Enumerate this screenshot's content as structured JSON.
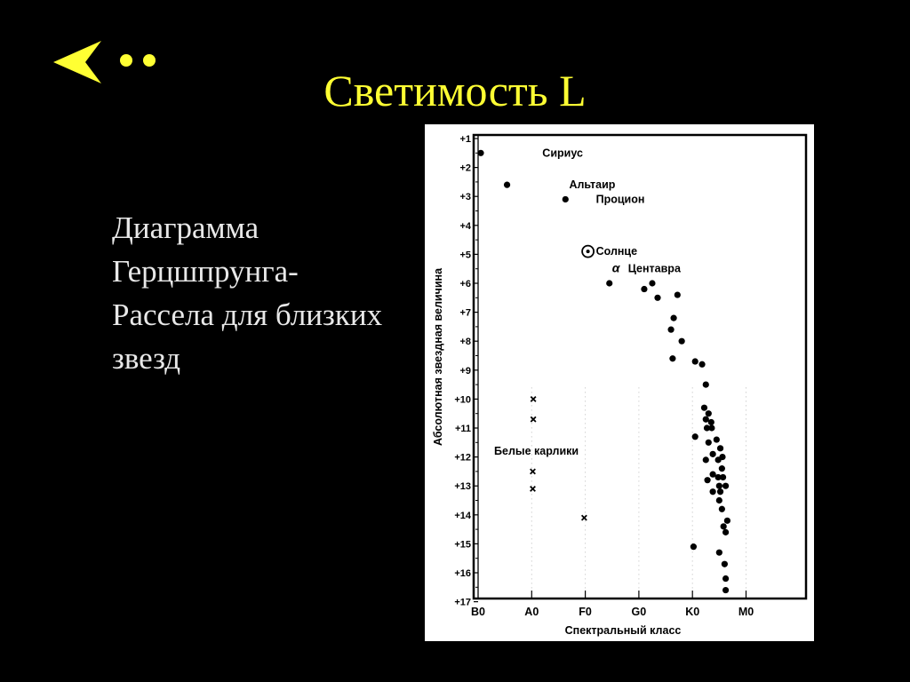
{
  "nav": {
    "back_icon": "back-arrow-dots-icon",
    "accent_color": "#ffff33"
  },
  "slide": {
    "title": "Светимость L",
    "caption_lines": [
      "Диаграмма",
      "Герцшпрунга-",
      "Рассела для близких",
      "звезд"
    ]
  },
  "chart_data": {
    "type": "scatter",
    "xlabel": "Спектральный класс",
    "ylabel": "Абсолютная звездная величина",
    "x_ticks": [
      "B0",
      "A0",
      "F0",
      "G0",
      "K0",
      "M0"
    ],
    "y_ticks": [
      "+1",
      "+2",
      "+3",
      "+4",
      "+5",
      "+6",
      "+7",
      "+8",
      "+9",
      "+10",
      "+11",
      "+12",
      "+13",
      "+14",
      "+15",
      "+16",
      "+17"
    ],
    "xlim": [
      0,
      5.6
    ],
    "ylim": [
      1,
      17
    ],
    "y_inverted": true,
    "annotations": [
      {
        "text": "Сириус",
        "x": 1.0,
        "y": 1.5
      },
      {
        "text": "Альтаир",
        "x": 1.5,
        "y": 2.6
      },
      {
        "text": "Процион",
        "x": 2.0,
        "y": 3.1
      },
      {
        "text": "Солнце",
        "x": 2.0,
        "y": 4.9
      },
      {
        "text": "α",
        "x": 2.3,
        "y": 5.5
      },
      {
        "text": "Центавра",
        "x": 2.6,
        "y": 5.5
      },
      {
        "text": "Белые карлики",
        "x": 0.1,
        "y": 11.8
      }
    ],
    "series": [
      {
        "name": "dot",
        "marker": "dot",
        "points": [
          [
            0.05,
            1.5
          ],
          [
            0.54,
            2.6
          ],
          [
            1.63,
            3.1
          ],
          [
            2.45,
            6.0
          ],
          [
            3.1,
            6.2
          ],
          [
            3.25,
            6.0
          ],
          [
            3.35,
            6.5
          ],
          [
            3.72,
            6.4
          ],
          [
            3.65,
            7.2
          ],
          [
            3.6,
            7.6
          ],
          [
            3.8,
            8.0
          ],
          [
            3.63,
            8.6
          ],
          [
            4.05,
            8.7
          ],
          [
            4.18,
            8.8
          ],
          [
            4.25,
            9.5
          ],
          [
            4.22,
            10.3
          ],
          [
            4.3,
            10.5
          ],
          [
            4.25,
            10.7
          ],
          [
            4.35,
            10.8
          ],
          [
            4.27,
            11.0
          ],
          [
            4.36,
            11.0
          ],
          [
            4.05,
            11.3
          ],
          [
            4.3,
            11.5
          ],
          [
            4.45,
            11.4
          ],
          [
            4.52,
            11.7
          ],
          [
            4.38,
            11.9
          ],
          [
            4.48,
            12.1
          ],
          [
            4.56,
            12.0
          ],
          [
            4.25,
            12.1
          ],
          [
            4.55,
            12.4
          ],
          [
            4.38,
            12.6
          ],
          [
            4.48,
            12.7
          ],
          [
            4.57,
            12.7
          ],
          [
            4.28,
            12.8
          ],
          [
            4.5,
            13.0
          ],
          [
            4.62,
            13.0
          ],
          [
            4.38,
            13.2
          ],
          [
            4.52,
            13.2
          ],
          [
            4.5,
            13.5
          ],
          [
            4.55,
            13.8
          ],
          [
            4.65,
            14.2
          ],
          [
            4.58,
            14.4
          ],
          [
            4.62,
            14.6
          ],
          [
            4.02,
            15.1
          ],
          [
            4.5,
            15.3
          ],
          [
            4.6,
            15.7
          ],
          [
            4.62,
            16.2
          ],
          [
            4.62,
            16.6
          ]
        ]
      },
      {
        "name": "sun",
        "marker": "sun",
        "points": [
          [
            2.05,
            4.9
          ]
        ]
      },
      {
        "name": "white-dwarf",
        "marker": "cross",
        "points": [
          [
            1.03,
            10.0
          ],
          [
            1.03,
            10.7
          ],
          [
            1.02,
            12.5
          ],
          [
            1.02,
            13.1
          ],
          [
            1.98,
            14.1
          ]
        ]
      }
    ]
  }
}
